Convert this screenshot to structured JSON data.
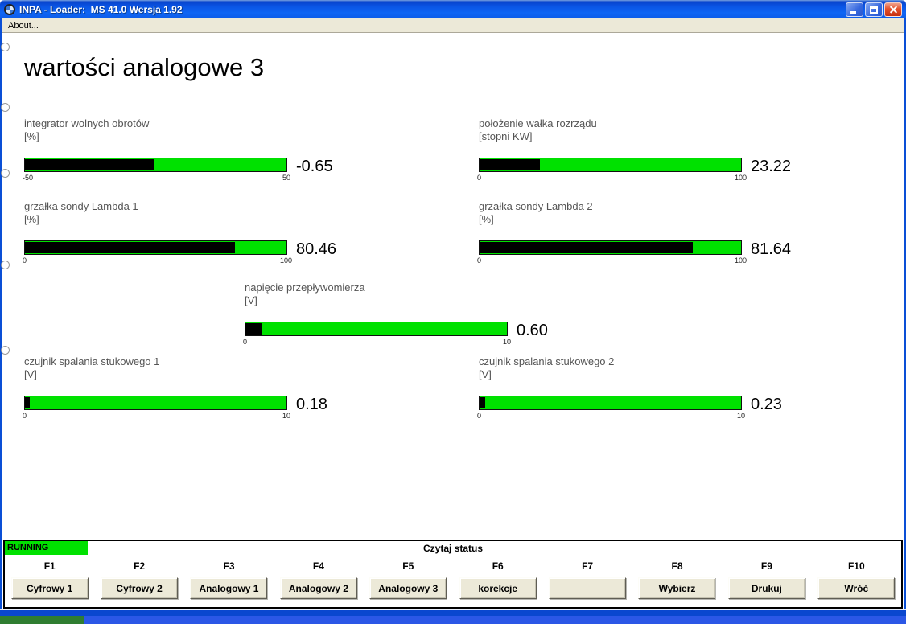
{
  "titlebar": {
    "title": "INPA - Loader:  MS 41.0 Wersja 1.92"
  },
  "menubar": {
    "items": [
      {
        "label": "About..."
      }
    ]
  },
  "content": {
    "heading": "wartości analogowe 3",
    "gauges": [
      {
        "id": "integrator-wolnych-obrotow",
        "label": "integrator wolnych obrotów",
        "unit": "[%]",
        "value": "-0.65",
        "min": "-50",
        "max": "50",
        "fill_pct": 49.35
      },
      {
        "id": "polozenie-walka-rozrzadu",
        "label": "położenie wałka rozrządu",
        "unit": "[stopni KW]",
        "value": "23.22",
        "min": "0",
        "max": "100",
        "fill_pct": 23.22
      },
      {
        "id": "grzalka-sondy-lambda-1",
        "label": "grzałka sondy Lambda 1",
        "unit": "[%]",
        "value": "80.46",
        "min": "0",
        "max": "100",
        "fill_pct": 80.46
      },
      {
        "id": "grzalka-sondy-lambda-2",
        "label": "grzałka sondy Lambda 2",
        "unit": "[%]",
        "value": "81.64",
        "min": "0",
        "max": "100",
        "fill_pct": 81.64
      },
      {
        "id": "napiecie-przeplywomierza",
        "label": "napięcie przepływomierza",
        "unit": "[V]",
        "value": "0.60",
        "min": "0",
        "max": "10",
        "fill_pct": 6.0
      },
      {
        "id": "czujnik-spalania-stukowego-1",
        "label": "czujnik spalania stukowego 1",
        "unit": "[V]",
        "value": "0.18",
        "min": "0",
        "max": "10",
        "fill_pct": 1.8
      },
      {
        "id": "czujnik-spalania-stukowego-2",
        "label": "czujnik spalania stukowego 2",
        "unit": "[V]",
        "value": "0.23",
        "min": "0",
        "max": "10",
        "fill_pct": 2.3
      }
    ]
  },
  "status_panel": {
    "running_label": "RUNNING",
    "status_text": "Czytaj status",
    "function_keys": [
      {
        "key": "F1",
        "button": "Cyfrowy 1"
      },
      {
        "key": "F2",
        "button": "Cyfrowy 2"
      },
      {
        "key": "F3",
        "button": "Analogowy 1"
      },
      {
        "key": "F4",
        "button": "Analogowy 2"
      },
      {
        "key": "F5",
        "button": "Analogowy 3"
      },
      {
        "key": "F6",
        "button": "korekcje"
      },
      {
        "key": "F7",
        "button": ""
      },
      {
        "key": "F8",
        "button": "Wybierz"
      },
      {
        "key": "F9",
        "button": "Drukuj"
      },
      {
        "key": "F10",
        "button": "Wróć"
      }
    ]
  },
  "colors": {
    "bar_green": "#00e100",
    "running_green": "#00e100",
    "titlebar_blue": "#0a55e4",
    "window_border_blue": "#0a4fd6",
    "menubar_bg": "#ece9d8",
    "button_face": "#ece9d8",
    "desktop_green": "#2f7d31",
    "desktop_blue": "#2b57e6"
  }
}
